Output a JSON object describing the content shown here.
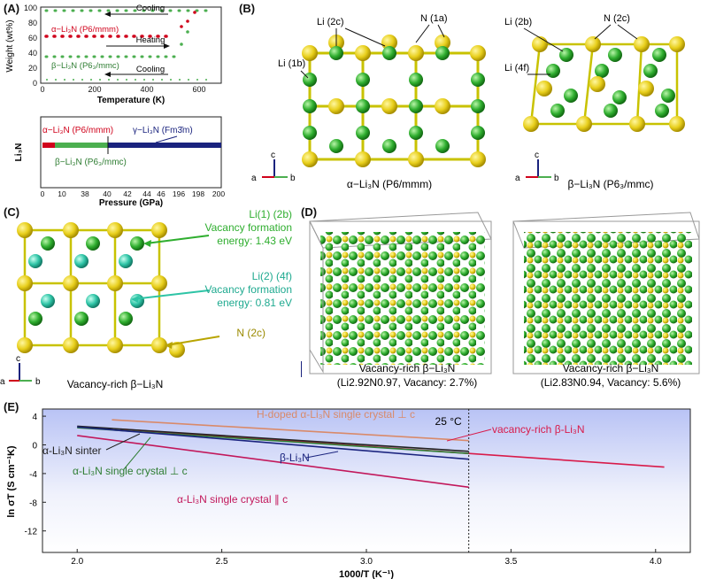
{
  "panels": {
    "A": "(A)",
    "B": "(B)",
    "C": "(C)",
    "D": "(D)",
    "E": "(E)"
  },
  "panelA_top": {
    "ylabel": "Weight (wt%)",
    "xlabel": "Temperature (K)",
    "yticks": [
      "0",
      "20",
      "40",
      "60",
      "80",
      "100"
    ],
    "xticks": [
      "0",
      "200",
      "400",
      "600"
    ],
    "labels": {
      "cooling_top": "Cooling",
      "alpha": "α−Li₃N (P6/mmm)",
      "heating": "Heating",
      "beta": "β−Li₃N (P6₃/mmc)",
      "cooling_bottom": "Cooling"
    }
  },
  "panelA_bottom": {
    "ylabel": "Li₃N",
    "xlabel": "Pressure (GPa)",
    "xticks": [
      "0",
      "10",
      "38",
      "40",
      "42",
      "44",
      "46",
      "196",
      "198",
      "200"
    ],
    "labels": {
      "alpha": "α−Li₃N (P6/mmm)",
      "gamma": "γ−Li₃N (Fm3̄m)",
      "beta": "β−Li₃N (P6₃/mmc)"
    },
    "colors": {
      "alpha": "#d0021b",
      "beta": "#4caf50",
      "gamma": "#1a237e"
    }
  },
  "panelB": {
    "left_labels": {
      "li2c": "Li (2c)",
      "n1a": "N (1a)",
      "li1b": "Li (1b)"
    },
    "right_labels": {
      "li2b": "Li (2b)",
      "n2c": "N (2c)",
      "li4f": "Li (4f)"
    },
    "caption_left": "α−Li₃N (P6/mmm)",
    "caption_right": "β−Li₃N (P6₃/mmc)"
  },
  "panelC": {
    "li1_title": "Li(1) (2b)",
    "li1_line1": "Vacancy formation",
    "li1_line2": "energy: 1.43 eV",
    "li2_title": "Li(2) (4f)",
    "li2_line1": "Vacancy formation",
    "li2_line2": "energy: 0.81 eV",
    "n_label": "N (2c)",
    "caption": "Vacancy-rich β−Li₃N"
  },
  "panelD": {
    "left_title": "Vacancy-rich β−Li₃N",
    "left_sub": "(Li2.92N0.97, Vacancy: 2.7%)",
    "right_title": "Vacancy-rich β−Li₃N",
    "right_sub": "(Li2.83N0.94, Vacancy: 5.6%)"
  },
  "axes_letters": {
    "a": "a",
    "b": "b",
    "c": "c"
  },
  "chart_data": [
    {
      "type": "line",
      "ylabel": "ln σT (S cm⁻¹K)",
      "xlabel": "1000/T (K⁻¹)",
      "xlim": [
        1.88,
        4.12
      ],
      "ylim": [
        -15,
        5
      ],
      "xticks": [
        "2.0",
        "2.5",
        "3.0",
        "3.5",
        "4.0"
      ],
      "yticks": [
        "4",
        "0",
        "-4",
        "-8",
        "-12"
      ],
      "annotation": "25 °C",
      "vline_x": 3.354,
      "series": [
        {
          "name": "H-doped α-Li₃N single crystal ⊥ c",
          "color": "#d98a6a",
          "x": [
            2.12,
            3.354
          ],
          "y": [
            3.5,
            0.6
          ]
        },
        {
          "name": "vacancy-rich β-Li₃N",
          "color": "#d81b4a",
          "x": [
            2.15,
            4.03
          ],
          "y": [
            2.2,
            -3.1
          ]
        },
        {
          "name": "α-Li₃N sinter",
          "color": "#222222",
          "x": [
            2.0,
            3.354
          ],
          "y": [
            2.6,
            -0.9
          ]
        },
        {
          "name": "α-Li₃N single crystal ⊥ c",
          "color": "#2e7d32",
          "x": [
            2.0,
            3.354
          ],
          "y": [
            2.4,
            -1.2
          ]
        },
        {
          "name": "β-Li₃N",
          "color": "#1a237e",
          "x": [
            2.0,
            3.354
          ],
          "y": [
            2.5,
            -2.0
          ]
        },
        {
          "name": "α-Li₃N single crystal ∥ c",
          "color": "#c2185b",
          "x": [
            2.0,
            3.354
          ],
          "y": [
            1.3,
            -5.9
          ]
        }
      ]
    }
  ]
}
